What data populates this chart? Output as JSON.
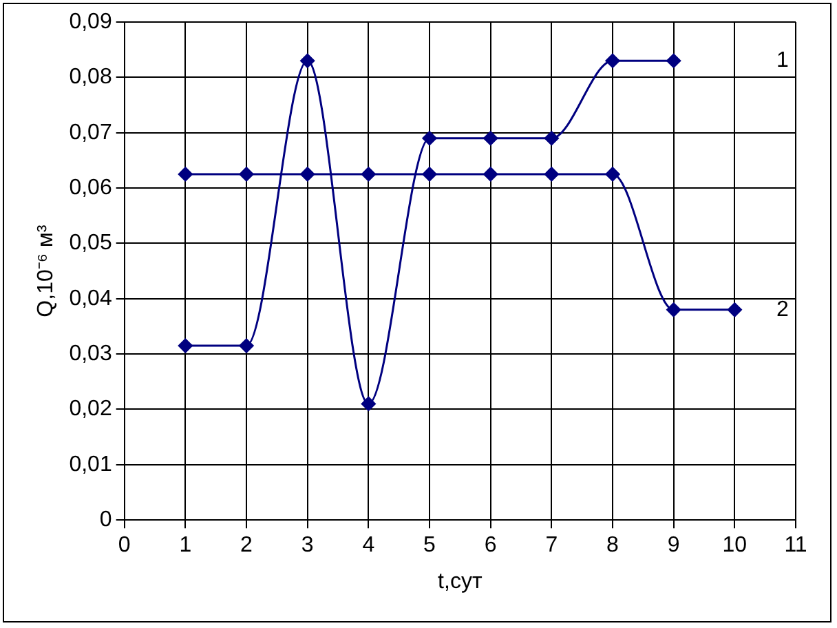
{
  "chart_data": {
    "type": "line",
    "xlabel": "t,сут",
    "ylabel": "Q,10⁻⁶ м³",
    "xlim": [
      0,
      11
    ],
    "xticks": [
      0,
      1,
      2,
      3,
      4,
      5,
      6,
      7,
      8,
      9,
      10,
      11
    ],
    "ylim": [
      0,
      0.09
    ],
    "yticks": [
      {
        "value": 0,
        "label": "0"
      },
      {
        "value": 0.01,
        "label": "0,01"
      },
      {
        "value": 0.02,
        "label": "0,02"
      },
      {
        "value": 0.03,
        "label": "0,03"
      },
      {
        "value": 0.04,
        "label": "0,04"
      },
      {
        "value": 0.05,
        "label": "0,05"
      },
      {
        "value": 0.06,
        "label": "0,06"
      },
      {
        "value": 0.07,
        "label": "0,07"
      },
      {
        "value": 0.08,
        "label": "0,08"
      },
      {
        "value": 0.09,
        "label": "0,09"
      }
    ],
    "series": [
      {
        "name": "1",
        "color": "#000080",
        "x": [
          1,
          2,
          3,
          4,
          5,
          6,
          7,
          8,
          9
        ],
        "values": [
          0.0315,
          0.0315,
          0.083,
          0.021,
          0.069,
          0.069,
          0.069,
          0.083,
          0.083
        ]
      },
      {
        "name": "2",
        "color": "#000080",
        "x": [
          1,
          2,
          3,
          4,
          5,
          6,
          7,
          8,
          9,
          10
        ],
        "values": [
          0.0625,
          0.0625,
          0.0625,
          0.0625,
          0.0625,
          0.0625,
          0.0625,
          0.0625,
          0.038,
          0.038
        ]
      }
    ],
    "grid": true,
    "legend": false,
    "marker": "diamond",
    "line_style": "solid"
  }
}
